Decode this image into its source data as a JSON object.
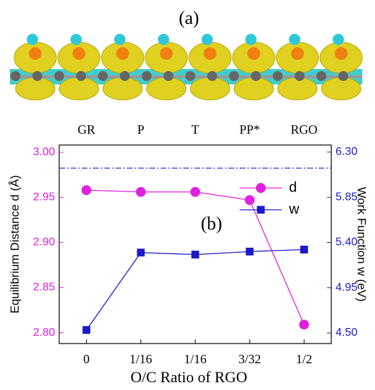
{
  "panel_label_a": "(a)",
  "chart_data": {
    "type": "line",
    "annotation": "(b)",
    "categories": [
      "0",
      "1/16",
      "1/16",
      "3/32",
      "1/2"
    ],
    "top_categories": [
      "GR",
      "P",
      "T",
      "PP*",
      "RGO"
    ],
    "x_label": "O/C Ratio of RGO",
    "y_label": "Equilibrium Distance d (Å)",
    "y2_label": "Work Function w (eV)",
    "ylim": [
      2.788,
      3.008
    ],
    "yticks": [
      {
        "value": 2.8,
        "label": "2.80"
      },
      2.85,
      {
        "value": 2.9,
        "label": "2.90"
      },
      2.95,
      {
        "value": 3.0,
        "label": "3.00"
      }
    ],
    "y2lim": [
      4.395,
      6.37
    ],
    "y2ticks": [
      {
        "value": 4.5,
        "label": "4.50"
      },
      4.95,
      {
        "value": 5.4,
        "label": "5.40"
      },
      5.85,
      {
        "value": 6.3,
        "label": "6.30"
      }
    ],
    "reference_line": {
      "axis": "y2",
      "value": 6.14,
      "color": "#2a2ad0"
    },
    "legend": "upper right",
    "series": [
      {
        "name": "d",
        "color": "#e020e0",
        "marker": "circle",
        "values": [
          2.958,
          2.956,
          2.956,
          2.947,
          2.809
        ]
      },
      {
        "name": "w",
        "color": "#1a1ac8",
        "marker": "square",
        "axis": "y2",
        "values": [
          4.53,
          5.3,
          5.28,
          5.31,
          5.33
        ]
      }
    ]
  }
}
